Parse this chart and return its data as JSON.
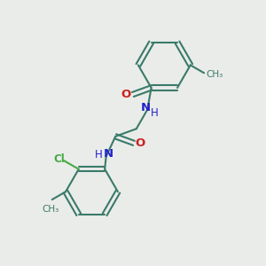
{
  "background_color": "#eaece9",
  "bond_color": "#3a7a6a",
  "N_color": "#2222cc",
  "O_color": "#cc2222",
  "Cl_color": "#44aa44",
  "figsize": [
    3.0,
    3.0
  ],
  "dpi": 100,
  "xlim": [
    0,
    10
  ],
  "ylim": [
    0,
    10
  ]
}
